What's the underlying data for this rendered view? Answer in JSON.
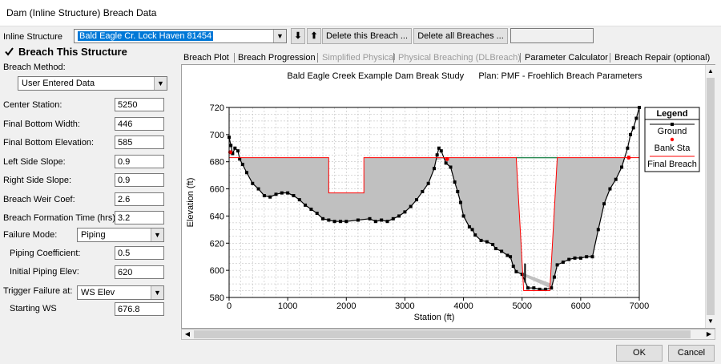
{
  "window": {
    "title": "Dam (Inline Structure) Breach Data"
  },
  "toolbar": {
    "inline_structure_label": "Inline Structure",
    "inline_structure_value": "Bald Eagle Cr.  Lock Haven      81454",
    "down_arrow": "⬇",
    "up_arrow": "⬆",
    "delete_this_label": "Delete this Breach ...",
    "delete_all_label": "Delete all Breaches ...",
    "status_value": ""
  },
  "left": {
    "breach_this_label": "Breach This Structure",
    "breach_this_checked": true,
    "breach_method_label": "Breach Method:",
    "breach_method_value": "User Entered Data",
    "fields": [
      {
        "label": "Center Station:",
        "value": "5250"
      },
      {
        "label": "Final Bottom Width:",
        "value": "446"
      },
      {
        "label": "Final Bottom Elevation:",
        "value": "585"
      },
      {
        "label": "Left Side Slope:",
        "value": "0.9"
      },
      {
        "label": "Right Side Slope:",
        "value": "0.9"
      },
      {
        "label": "Breach Weir Coef:",
        "value": "2.6"
      },
      {
        "label": "Breach Formation Time (hrs):",
        "value": "3.2"
      }
    ],
    "failure_mode_label": "Failure Mode:",
    "failure_mode_value": "Piping",
    "piping_coef_label": "Piping Coefficient:",
    "piping_coef_value": "0.5",
    "initial_piping_label": "Initial Piping Elev:",
    "initial_piping_value": "620",
    "trigger_label": "Trigger Failure at:",
    "trigger_value": "WS Elev",
    "starting_ws_label": "Starting WS",
    "starting_ws_value": "676.8"
  },
  "tabs": [
    {
      "label": "Breach Plot",
      "enabled": true,
      "active": true
    },
    {
      "label": "Breach Progression",
      "enabled": true
    },
    {
      "label": "Simplified Physical",
      "enabled": false
    },
    {
      "label": "Physical Breaching (DLBreach)",
      "enabled": false
    },
    {
      "label": "Parameter Calculator",
      "enabled": true
    },
    {
      "label": "Breach Repair (optional)",
      "enabled": true
    }
  ],
  "buttons": {
    "ok": "OK",
    "cancel": "Cancel"
  },
  "icons": {
    "scroll_up": "triangle-up",
    "scroll_down": "triangle-down",
    "scroll_left": "triangle-left",
    "scroll_right": "triangle-right",
    "dropdown": "triangle-down"
  },
  "chart_data": {
    "type": "line",
    "title": "Bald Eagle Creek Example Dam Break Study      Plan: PMF - Froehlich Breach Parameters",
    "xlabel": "Station (ft)",
    "ylabel": "Elevation (ft)",
    "xlim": [
      0,
      7000
    ],
    "ylim": [
      580,
      720
    ],
    "xticks": [
      0,
      1000,
      2000,
      3000,
      4000,
      5000,
      6000,
      7000
    ],
    "yticks": [
      580,
      600,
      620,
      640,
      660,
      680,
      700,
      720
    ],
    "grid": true,
    "legend_title": "Legend",
    "legend_placement": "right",
    "colors": {
      "ground": "#000000",
      "bank": "#ff0000",
      "breach": "#ff0000",
      "fill": "#c0c0c0",
      "grid": "#b4b4b4",
      "top_of_dam": "#2e8b57"
    },
    "series": [
      {
        "name": "Ground",
        "x": [
          0,
          30,
          60,
          100,
          150,
          180,
          230,
          300,
          400,
          500,
          600,
          700,
          800,
          900,
          1000,
          1100,
          1200,
          1300,
          1400,
          1500,
          1600,
          1700,
          1800,
          1900,
          2000,
          2200,
          2400,
          2500,
          2600,
          2700,
          2800,
          2900,
          3000,
          3100,
          3200,
          3300,
          3400,
          3500,
          3550,
          3580,
          3620,
          3700,
          3780,
          3850,
          3900,
          3950,
          4000,
          4100,
          4150,
          4200,
          4300,
          4400,
          4500,
          4550,
          4650,
          4750,
          4800,
          4850,
          4900,
          5000,
          5100,
          5200,
          5300,
          5400,
          5500,
          5550,
          5600,
          5700,
          5800,
          5900,
          6000,
          6100,
          6200,
          6300,
          6400,
          6500,
          6600,
          6700,
          6800,
          6850,
          6900,
          6950,
          7000
        ],
        "y": [
          698,
          692,
          686,
          690,
          688,
          682,
          678,
          672,
          664,
          660,
          655,
          654,
          656,
          657,
          657,
          655,
          652,
          648,
          645,
          642,
          638,
          637,
          636,
          636,
          636,
          637,
          638,
          636,
          637,
          636,
          638,
          640,
          643,
          647,
          652,
          658,
          664,
          675,
          685,
          690,
          688,
          679,
          676,
          665,
          658,
          650,
          640,
          632,
          630,
          626,
          622,
          621,
          619,
          616,
          614,
          611,
          610,
          603,
          599,
          597,
          587,
          587,
          586,
          586,
          587,
          595,
          604,
          606,
          608,
          609,
          609,
          610,
          610,
          630,
          649,
          660,
          667,
          676,
          690,
          700,
          705,
          712,
          720
        ]
      },
      {
        "name": "Bank Sta",
        "points": [
          [
            20,
            687
          ],
          [
            3720,
            682
          ],
          [
            6820,
            683
          ]
        ]
      },
      {
        "name": "Final Breach",
        "x": [
          0,
          1700,
          1700,
          2300,
          2300,
          4900,
          5027,
          5473,
          5600,
          7000
        ],
        "y": [
          683,
          683,
          657,
          657,
          683,
          683,
          585,
          585,
          683,
          683
        ]
      }
    ]
  }
}
